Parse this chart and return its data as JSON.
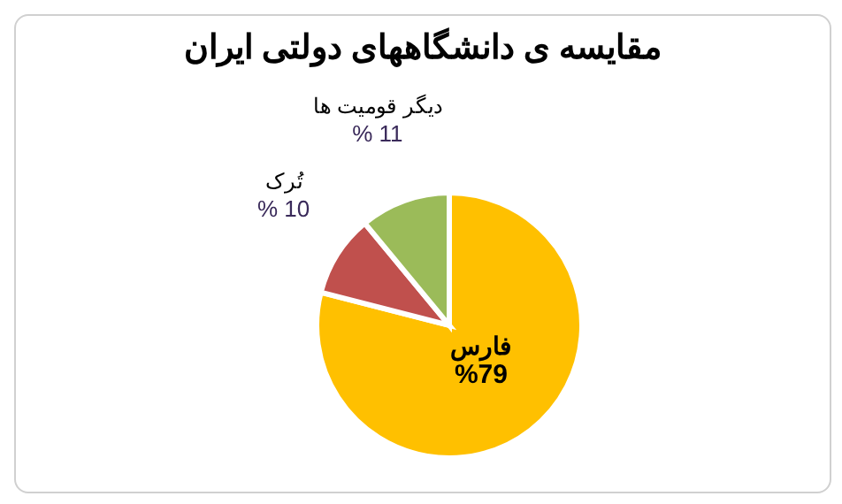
{
  "chart_data": {
    "type": "pie",
    "title": "مقایسه ی دانشگاههای دولتی ایران",
    "categories": [
      "فارس",
      "تُرک",
      "دیگر قومیت ها"
    ],
    "values": [
      79,
      10,
      11
    ],
    "colors": [
      "#ffc000",
      "#c0504d",
      "#9bbb59"
    ],
    "value_labels": [
      "%79",
      "% 10",
      "% 11"
    ]
  }
}
